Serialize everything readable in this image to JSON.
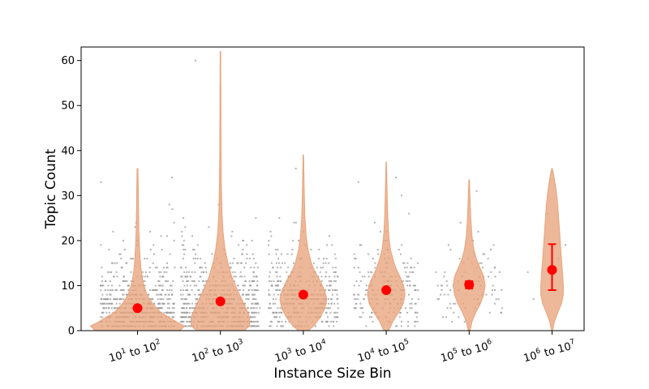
{
  "chart_data": {
    "type": "violin",
    "xlabel": "Instance Size Bin",
    "ylabel": "Topic Count",
    "ylim": [
      0,
      63
    ],
    "yticks": [
      0,
      10,
      20,
      30,
      40,
      50,
      60
    ],
    "grid": false,
    "colors": {
      "violin": "#e8a47c",
      "violin_edge": "#e8a47c",
      "mean": "#ff0000",
      "points": "#9a9a9a",
      "axis": "#000000"
    },
    "categories": [
      {
        "base1": "10",
        "exp1": "1",
        "mid": " to ",
        "base2": "10",
        "exp2": "2"
      },
      {
        "base1": "10",
        "exp1": "2",
        "mid": " to ",
        "base2": "10",
        "exp2": "3"
      },
      {
        "base1": "10",
        "exp1": "3",
        "mid": " to ",
        "base2": "10",
        "exp2": "4"
      },
      {
        "base1": "10",
        "exp1": "4",
        "mid": " to ",
        "base2": "10",
        "exp2": "5"
      },
      {
        "base1": "10",
        "exp1": "5",
        "mid": " to ",
        "base2": "10",
        "exp2": "6"
      },
      {
        "base1": "10",
        "exp1": "6",
        "mid": " to ",
        "base2": "10",
        "exp2": "7"
      }
    ],
    "series": [
      {
        "mean": 5.0,
        "ci": [
          4.6,
          5.4
        ],
        "min": 0,
        "max": 36,
        "profile": [
          [
            0,
            0.9
          ],
          [
            1,
            1.0
          ],
          [
            2,
            0.82
          ],
          [
            4,
            0.5
          ],
          [
            6,
            0.32
          ],
          [
            8,
            0.2
          ],
          [
            11,
            0.11
          ],
          [
            14,
            0.07
          ],
          [
            18,
            0.045
          ],
          [
            22,
            0.03
          ],
          [
            27,
            0.02
          ],
          [
            32,
            0.015
          ],
          [
            36,
            0.008
          ]
        ],
        "scatter_spread": 0.45,
        "scatter_levels": [
          [
            1,
            60
          ],
          [
            2,
            70
          ],
          [
            3,
            65
          ],
          [
            4,
            60
          ],
          [
            5,
            55
          ],
          [
            6,
            50
          ],
          [
            7,
            44
          ],
          [
            8,
            38
          ],
          [
            9,
            32
          ],
          [
            10,
            26
          ],
          [
            11,
            20
          ],
          [
            12,
            16
          ],
          [
            13,
            12
          ],
          [
            14,
            10
          ],
          [
            15,
            8
          ],
          [
            16,
            6
          ],
          [
            17,
            4
          ],
          [
            18,
            4
          ],
          [
            19,
            3
          ],
          [
            20,
            3
          ],
          [
            21,
            2
          ],
          [
            22,
            2
          ],
          [
            23,
            1
          ],
          [
            24,
            2
          ],
          [
            27,
            1
          ],
          [
            28,
            1
          ],
          [
            33,
            1
          ],
          [
            34,
            1
          ]
        ]
      },
      {
        "mean": 6.5,
        "ci": [
          6.1,
          6.9
        ],
        "min": 0,
        "max": 62,
        "profile": [
          [
            0,
            0.5
          ],
          [
            1,
            0.62
          ],
          [
            3,
            0.62
          ],
          [
            6,
            0.5
          ],
          [
            9,
            0.36
          ],
          [
            12,
            0.24
          ],
          [
            15,
            0.16
          ],
          [
            18,
            0.1
          ],
          [
            22,
            0.055
          ],
          [
            26,
            0.035
          ],
          [
            32,
            0.02
          ],
          [
            40,
            0.013
          ],
          [
            50,
            0.01
          ],
          [
            62,
            0.006
          ]
        ],
        "scatter_spread": 0.48,
        "scatter_levels": [
          [
            1,
            60
          ],
          [
            2,
            65
          ],
          [
            3,
            62
          ],
          [
            4,
            60
          ],
          [
            5,
            56
          ],
          [
            6,
            52
          ],
          [
            7,
            48
          ],
          [
            8,
            44
          ],
          [
            9,
            38
          ],
          [
            10,
            34
          ],
          [
            11,
            28
          ],
          [
            12,
            24
          ],
          [
            13,
            20
          ],
          [
            14,
            16
          ],
          [
            15,
            13
          ],
          [
            16,
            10
          ],
          [
            17,
            8
          ],
          [
            18,
            6
          ],
          [
            19,
            5
          ],
          [
            20,
            4
          ],
          [
            21,
            3
          ],
          [
            22,
            2
          ],
          [
            23,
            2
          ],
          [
            25,
            2
          ],
          [
            28,
            1
          ],
          [
            60,
            1
          ]
        ]
      },
      {
        "mean": 8.0,
        "ci": [
          7.6,
          8.4
        ],
        "min": 0,
        "max": 39,
        "profile": [
          [
            0,
            0.1
          ],
          [
            1,
            0.22
          ],
          [
            3,
            0.36
          ],
          [
            5,
            0.46
          ],
          [
            7,
            0.5
          ],
          [
            9,
            0.45
          ],
          [
            11,
            0.36
          ],
          [
            13,
            0.25
          ],
          [
            15,
            0.17
          ],
          [
            18,
            0.1
          ],
          [
            21,
            0.06
          ],
          [
            25,
            0.035
          ],
          [
            30,
            0.02
          ],
          [
            35,
            0.012
          ],
          [
            39,
            0.005
          ]
        ],
        "scatter_spread": 0.42,
        "scatter_levels": [
          [
            1,
            18
          ],
          [
            2,
            22
          ],
          [
            3,
            28
          ],
          [
            4,
            32
          ],
          [
            5,
            34
          ],
          [
            6,
            36
          ],
          [
            7,
            36
          ],
          [
            8,
            34
          ],
          [
            9,
            32
          ],
          [
            10,
            28
          ],
          [
            11,
            24
          ],
          [
            12,
            20
          ],
          [
            13,
            16
          ],
          [
            14,
            13
          ],
          [
            15,
            10
          ],
          [
            16,
            8
          ],
          [
            17,
            6
          ],
          [
            18,
            5
          ],
          [
            19,
            4
          ],
          [
            20,
            3
          ],
          [
            21,
            2
          ],
          [
            22,
            2
          ],
          [
            24,
            2
          ],
          [
            25,
            1
          ],
          [
            36,
            1
          ]
        ]
      },
      {
        "mean": 9.0,
        "ci": [
          8.6,
          9.4
        ],
        "min": 0,
        "max": 37.5,
        "profile": [
          [
            0,
            0.05
          ],
          [
            2,
            0.14
          ],
          [
            4,
            0.26
          ],
          [
            6,
            0.36
          ],
          [
            8,
            0.4
          ],
          [
            10,
            0.37
          ],
          [
            12,
            0.29
          ],
          [
            14,
            0.2
          ],
          [
            16,
            0.14
          ],
          [
            18,
            0.09
          ],
          [
            21,
            0.055
          ],
          [
            25,
            0.035
          ],
          [
            30,
            0.02
          ],
          [
            34,
            0.012
          ],
          [
            37.5,
            0.004
          ]
        ],
        "scatter_spread": 0.4,
        "scatter_levels": [
          [
            1,
            6
          ],
          [
            2,
            8
          ],
          [
            3,
            10
          ],
          [
            4,
            13
          ],
          [
            5,
            15
          ],
          [
            6,
            17
          ],
          [
            7,
            18
          ],
          [
            8,
            18
          ],
          [
            9,
            18
          ],
          [
            10,
            17
          ],
          [
            11,
            15
          ],
          [
            12,
            13
          ],
          [
            13,
            11
          ],
          [
            14,
            9
          ],
          [
            15,
            7
          ],
          [
            16,
            6
          ],
          [
            17,
            5
          ],
          [
            18,
            4
          ],
          [
            19,
            3
          ],
          [
            20,
            2
          ],
          [
            22,
            2
          ],
          [
            24,
            1
          ],
          [
            26,
            1
          ],
          [
            30,
            1
          ],
          [
            33,
            1
          ],
          [
            34,
            1
          ]
        ]
      },
      {
        "mean": 10.2,
        "ci": [
          9.4,
          11.0
        ],
        "min": 0,
        "max": 33.5,
        "profile": [
          [
            0,
            0.02
          ],
          [
            2,
            0.06
          ],
          [
            4,
            0.14
          ],
          [
            6,
            0.24
          ],
          [
            8,
            0.31
          ],
          [
            10,
            0.34
          ],
          [
            12,
            0.31
          ],
          [
            14,
            0.23
          ],
          [
            16,
            0.15
          ],
          [
            18,
            0.1
          ],
          [
            21,
            0.06
          ],
          [
            25,
            0.035
          ],
          [
            30,
            0.018
          ],
          [
            33.5,
            0.005
          ]
        ],
        "scatter_spread": 0.4,
        "scatter_levels": [
          [
            2,
            2
          ],
          [
            3,
            3
          ],
          [
            4,
            4
          ],
          [
            5,
            5
          ],
          [
            6,
            6
          ],
          [
            7,
            7
          ],
          [
            8,
            7
          ],
          [
            9,
            7
          ],
          [
            10,
            7
          ],
          [
            11,
            6
          ],
          [
            12,
            6
          ],
          [
            13,
            5
          ],
          [
            14,
            4
          ],
          [
            15,
            4
          ],
          [
            16,
            3
          ],
          [
            17,
            3
          ],
          [
            18,
            2
          ],
          [
            19,
            2
          ],
          [
            20,
            2
          ],
          [
            22,
            1
          ],
          [
            24,
            1
          ],
          [
            31,
            1
          ]
        ]
      },
      {
        "mean": 13.5,
        "ci": [
          9.0,
          19.2
        ],
        "min": 0,
        "max": 36,
        "profile": [
          [
            0,
            0.01
          ],
          [
            2,
            0.05
          ],
          [
            4,
            0.12
          ],
          [
            6,
            0.2
          ],
          [
            8,
            0.24
          ],
          [
            10,
            0.24
          ],
          [
            13,
            0.22
          ],
          [
            16,
            0.2
          ],
          [
            19,
            0.18
          ],
          [
            22,
            0.16
          ],
          [
            25,
            0.14
          ],
          [
            28,
            0.12
          ],
          [
            31,
            0.09
          ],
          [
            33,
            0.06
          ],
          [
            35,
            0.03
          ],
          [
            36,
            0.005
          ]
        ],
        "scatter_spread": 0.3,
        "scatter_levels": [
          [
            7,
            1
          ],
          [
            9,
            1
          ],
          [
            13,
            1
          ],
          [
            16,
            1
          ],
          [
            19,
            1
          ],
          [
            26,
            1
          ]
        ]
      }
    ]
  }
}
